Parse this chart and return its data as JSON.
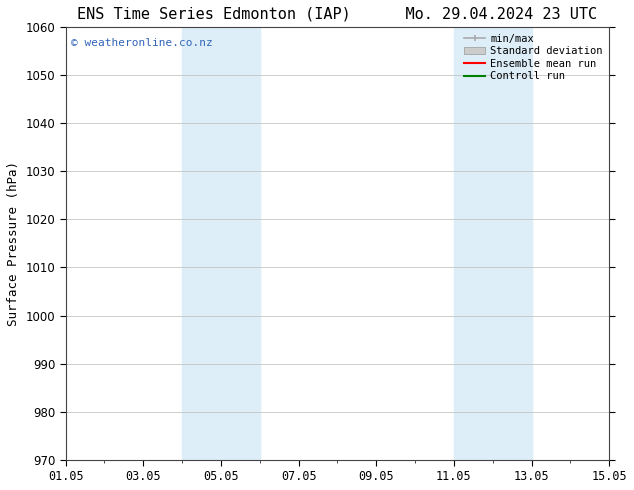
{
  "title_left": "ENS Time Series Edmonton (IAP)",
  "title_right": "Mo. 29.04.2024 23 UTC",
  "ylabel": "Surface Pressure (hPa)",
  "ylim": [
    970,
    1060
  ],
  "yticks": [
    970,
    980,
    990,
    1000,
    1010,
    1020,
    1030,
    1040,
    1050,
    1060
  ],
  "xtick_labels": [
    "01.05",
    "03.05",
    "05.05",
    "07.05",
    "09.05",
    "11.05",
    "13.05",
    "15.05"
  ],
  "xtick_positions": [
    0,
    2,
    4,
    6,
    8,
    10,
    12,
    14
  ],
  "xlim": [
    0,
    14
  ],
  "shaded_regions": [
    {
      "x_start": 3,
      "x_end": 5
    },
    {
      "x_start": 10,
      "x_end": 12
    }
  ],
  "shaded_color": "#ddeef8",
  "watermark_text": "© weatheronline.co.nz",
  "watermark_color": "#3366bb",
  "legend_entries": [
    "min/max",
    "Standard deviation",
    "Ensemble mean run",
    "Controll run"
  ],
  "legend_colors": [
    "#aaaaaa",
    "#cccccc",
    "#ff0000",
    "#008000"
  ],
  "background_color": "#ffffff",
  "grid_color": "#bbbbbb",
  "title_fontsize": 11,
  "axis_fontsize": 9,
  "tick_fontsize": 8.5
}
